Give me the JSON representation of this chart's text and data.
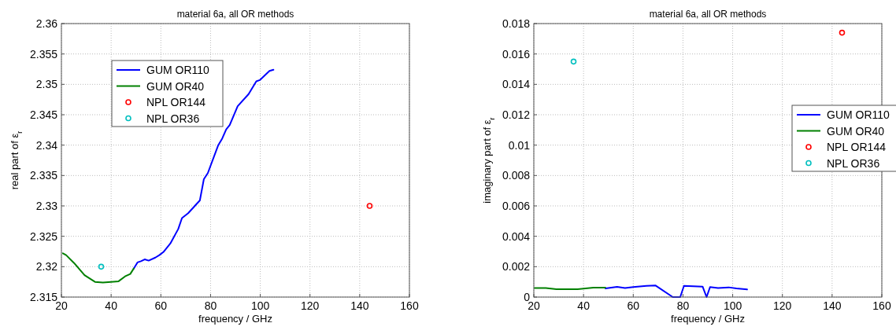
{
  "chart_data": [
    {
      "type": "line",
      "title": "material 6a, all OR methods",
      "xlabel": "frequency / GHz",
      "ylabel": "real part of ε$_{r}$",
      "xlim": [
        20,
        160
      ],
      "xticks": [
        20,
        40,
        60,
        80,
        100,
        120,
        140,
        160
      ],
      "ylim": [
        2.315,
        2.36
      ],
      "yticks": [
        2.315,
        2.32,
        2.325,
        2.33,
        2.335,
        2.34,
        2.345,
        2.35,
        2.355,
        2.36
      ],
      "grid": true,
      "legend": "top left",
      "series": [
        {
          "name": "GUM OR110",
          "color": "#0000ff",
          "x": [
            49.1,
            50.6,
            52,
            53.5,
            55.1,
            57.8,
            59.4,
            61,
            63.8,
            67,
            68.5,
            71,
            75.7,
            77.3,
            78.9,
            83.1,
            84.7,
            86.3,
            87.7,
            90.9,
            95.3,
            98.4,
            99.8,
            103.7,
            105.3
          ],
          "values": [
            2.3197,
            2.3207,
            2.3209,
            2.3212,
            2.321,
            2.3215,
            2.3219,
            2.3224,
            2.3238,
            2.3262,
            2.328,
            2.3288,
            2.3309,
            2.3344,
            2.3354,
            2.34,
            2.3411,
            2.3426,
            2.3433,
            2.3464,
            2.3484,
            2.3505,
            2.3507,
            2.3522,
            2.3524
          ]
        },
        {
          "name": "GUM OR40",
          "color": "#008000",
          "x": [
            20.6,
            21.9,
            25.1,
            29.3,
            33.5,
            36.7,
            39.9,
            43,
            45.6,
            47.7,
            49.1
          ],
          "values": [
            2.3222,
            2.3219,
            2.3206,
            2.3186,
            2.3175,
            2.3174,
            2.3175,
            2.3176,
            2.3184,
            2.3188,
            2.3197
          ]
        },
        {
          "name": "NPL OR144",
          "color": "#ff0000",
          "type": "scatter",
          "x": [
            144
          ],
          "values": [
            2.33
          ]
        },
        {
          "name": "NPL OR36",
          "color": "#00bfbf",
          "type": "scatter",
          "x": [
            36
          ],
          "values": [
            2.32
          ]
        }
      ]
    },
    {
      "type": "line",
      "title": "material 6a, all OR methods",
      "xlabel": "frequency / GHz",
      "ylabel": "imaginary part of ε$_{r}$",
      "xlim": [
        20,
        160
      ],
      "xticks": [
        20,
        40,
        60,
        80,
        100,
        120,
        140,
        160
      ],
      "ylim": [
        0,
        0.018
      ],
      "yticks": [
        0,
        0.002,
        0.004,
        0.006,
        0.008,
        0.01,
        0.012,
        0.014,
        0.016,
        0.018
      ],
      "grid": true,
      "legend": "right",
      "series": [
        {
          "name": "GUM OR110",
          "color": "#0000ff",
          "x": [
            48.8,
            53.5,
            56.7,
            60,
            65.3,
            69,
            75.9,
            78.9,
            80.4,
            87.9,
            89.5,
            90.9,
            94.1,
            98.4,
            101.5,
            105.8
          ],
          "values": [
            0.00057,
            0.00067,
            0.00059,
            0.00066,
            0.00074,
            0.00076,
            0,
            0,
            0.00074,
            0.00069,
            0,
            0.00066,
            0.0006,
            0.00064,
            0.00057,
            0.0005
          ]
        },
        {
          "name": "GUM OR40",
          "color": "#008000",
          "x": [
            20.3,
            24.8,
            29.1,
            37.6,
            44,
            48.8
          ],
          "values": [
            0.0006,
            0.00059,
            0.00052,
            0.00052,
            0.00062,
            0.00062
          ]
        },
        {
          "name": "NPL OR144",
          "color": "#ff0000",
          "type": "scatter",
          "x": [
            144
          ],
          "values": [
            0.0174
          ]
        },
        {
          "name": "NPL OR36",
          "color": "#00bfbf",
          "type": "scatter",
          "x": [
            36
          ],
          "values": [
            0.0155
          ]
        }
      ]
    }
  ]
}
